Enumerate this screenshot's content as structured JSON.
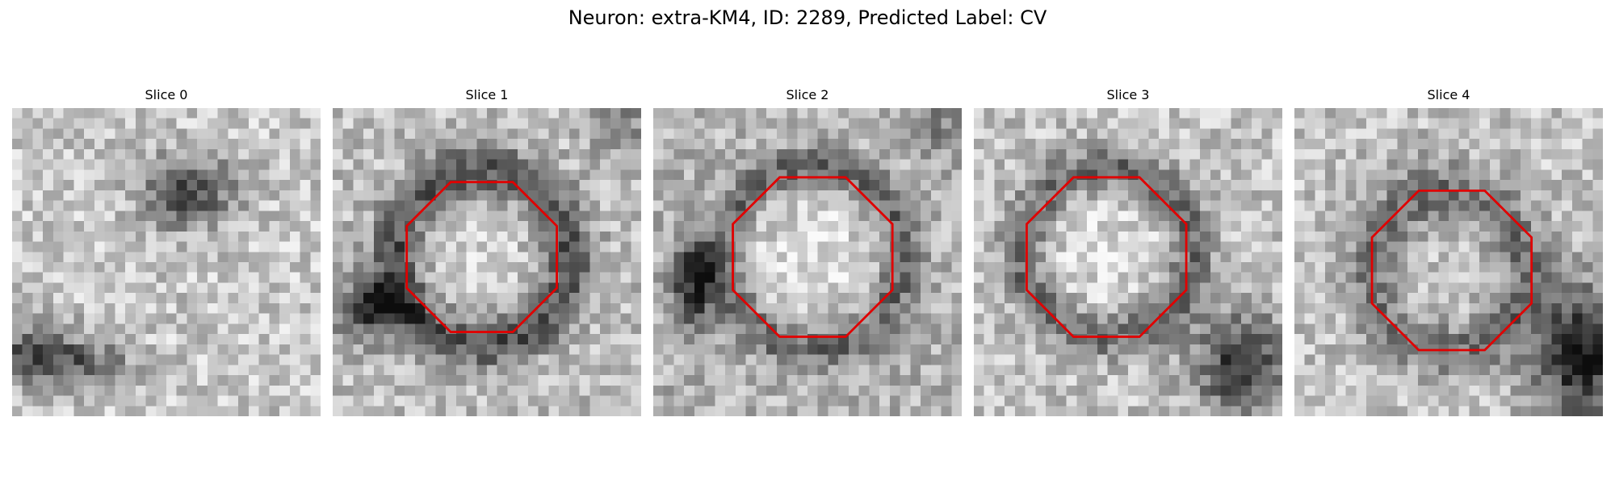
{
  "figure": {
    "title": "Neuron: extra-KM4, ID: 2289, Predicted Label: CV"
  },
  "outline_color": "#e00000",
  "panels": [
    {
      "title": "Slice 0",
      "has_outline": false
    },
    {
      "title": "Slice 1",
      "has_outline": true
    },
    {
      "title": "Slice 2",
      "has_outline": true
    },
    {
      "title": "Slice 3",
      "has_outline": true
    },
    {
      "title": "Slice 4",
      "has_outline": true
    }
  ]
}
